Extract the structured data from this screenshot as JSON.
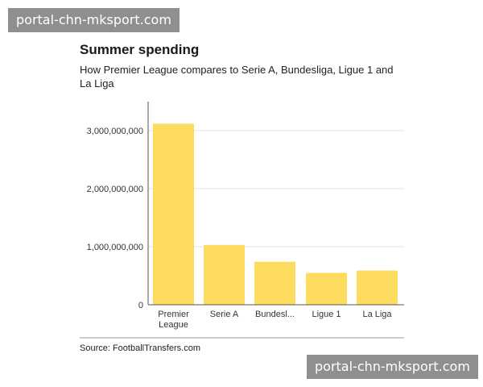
{
  "watermark": {
    "top_text": "portal-chn-mksport.com",
    "bottom_text": "portal-chn-mksport.com"
  },
  "header": {
    "title": "Summer spending",
    "subtitle": "How Premier League compares to Serie A, Bundesliga, Ligue 1 and La Liga"
  },
  "footer": {
    "source": "Source: FootballTransfers.com"
  },
  "colors": {
    "bar": "#fcdb5e",
    "grid": "#e3e3e3",
    "axis": "#555555",
    "text": "#333333"
  },
  "chart_data": {
    "type": "bar",
    "title": "Summer spending",
    "subtitle": "How Premier League compares to Serie A, Bundesliga, Ligue 1 and La Liga",
    "categories": [
      [
        "Premier",
        "League"
      ],
      [
        "Serie A"
      ],
      [
        "Bundesl..."
      ],
      [
        "Ligue 1"
      ],
      [
        "La Liga"
      ]
    ],
    "values": [
      3120000000,
      1030000000,
      740000000,
      550000000,
      590000000
    ],
    "ylim": [
      0,
      3000000000
    ],
    "yticks": [
      0,
      1000000000,
      2000000000,
      3000000000
    ],
    "ytick_labels": [
      "0",
      "1,000,000,000",
      "2,000,000,000",
      "3,000,000,000"
    ],
    "xlabel": "",
    "ylabel": "",
    "grid": true,
    "source": "Source: FootballTransfers.com"
  }
}
